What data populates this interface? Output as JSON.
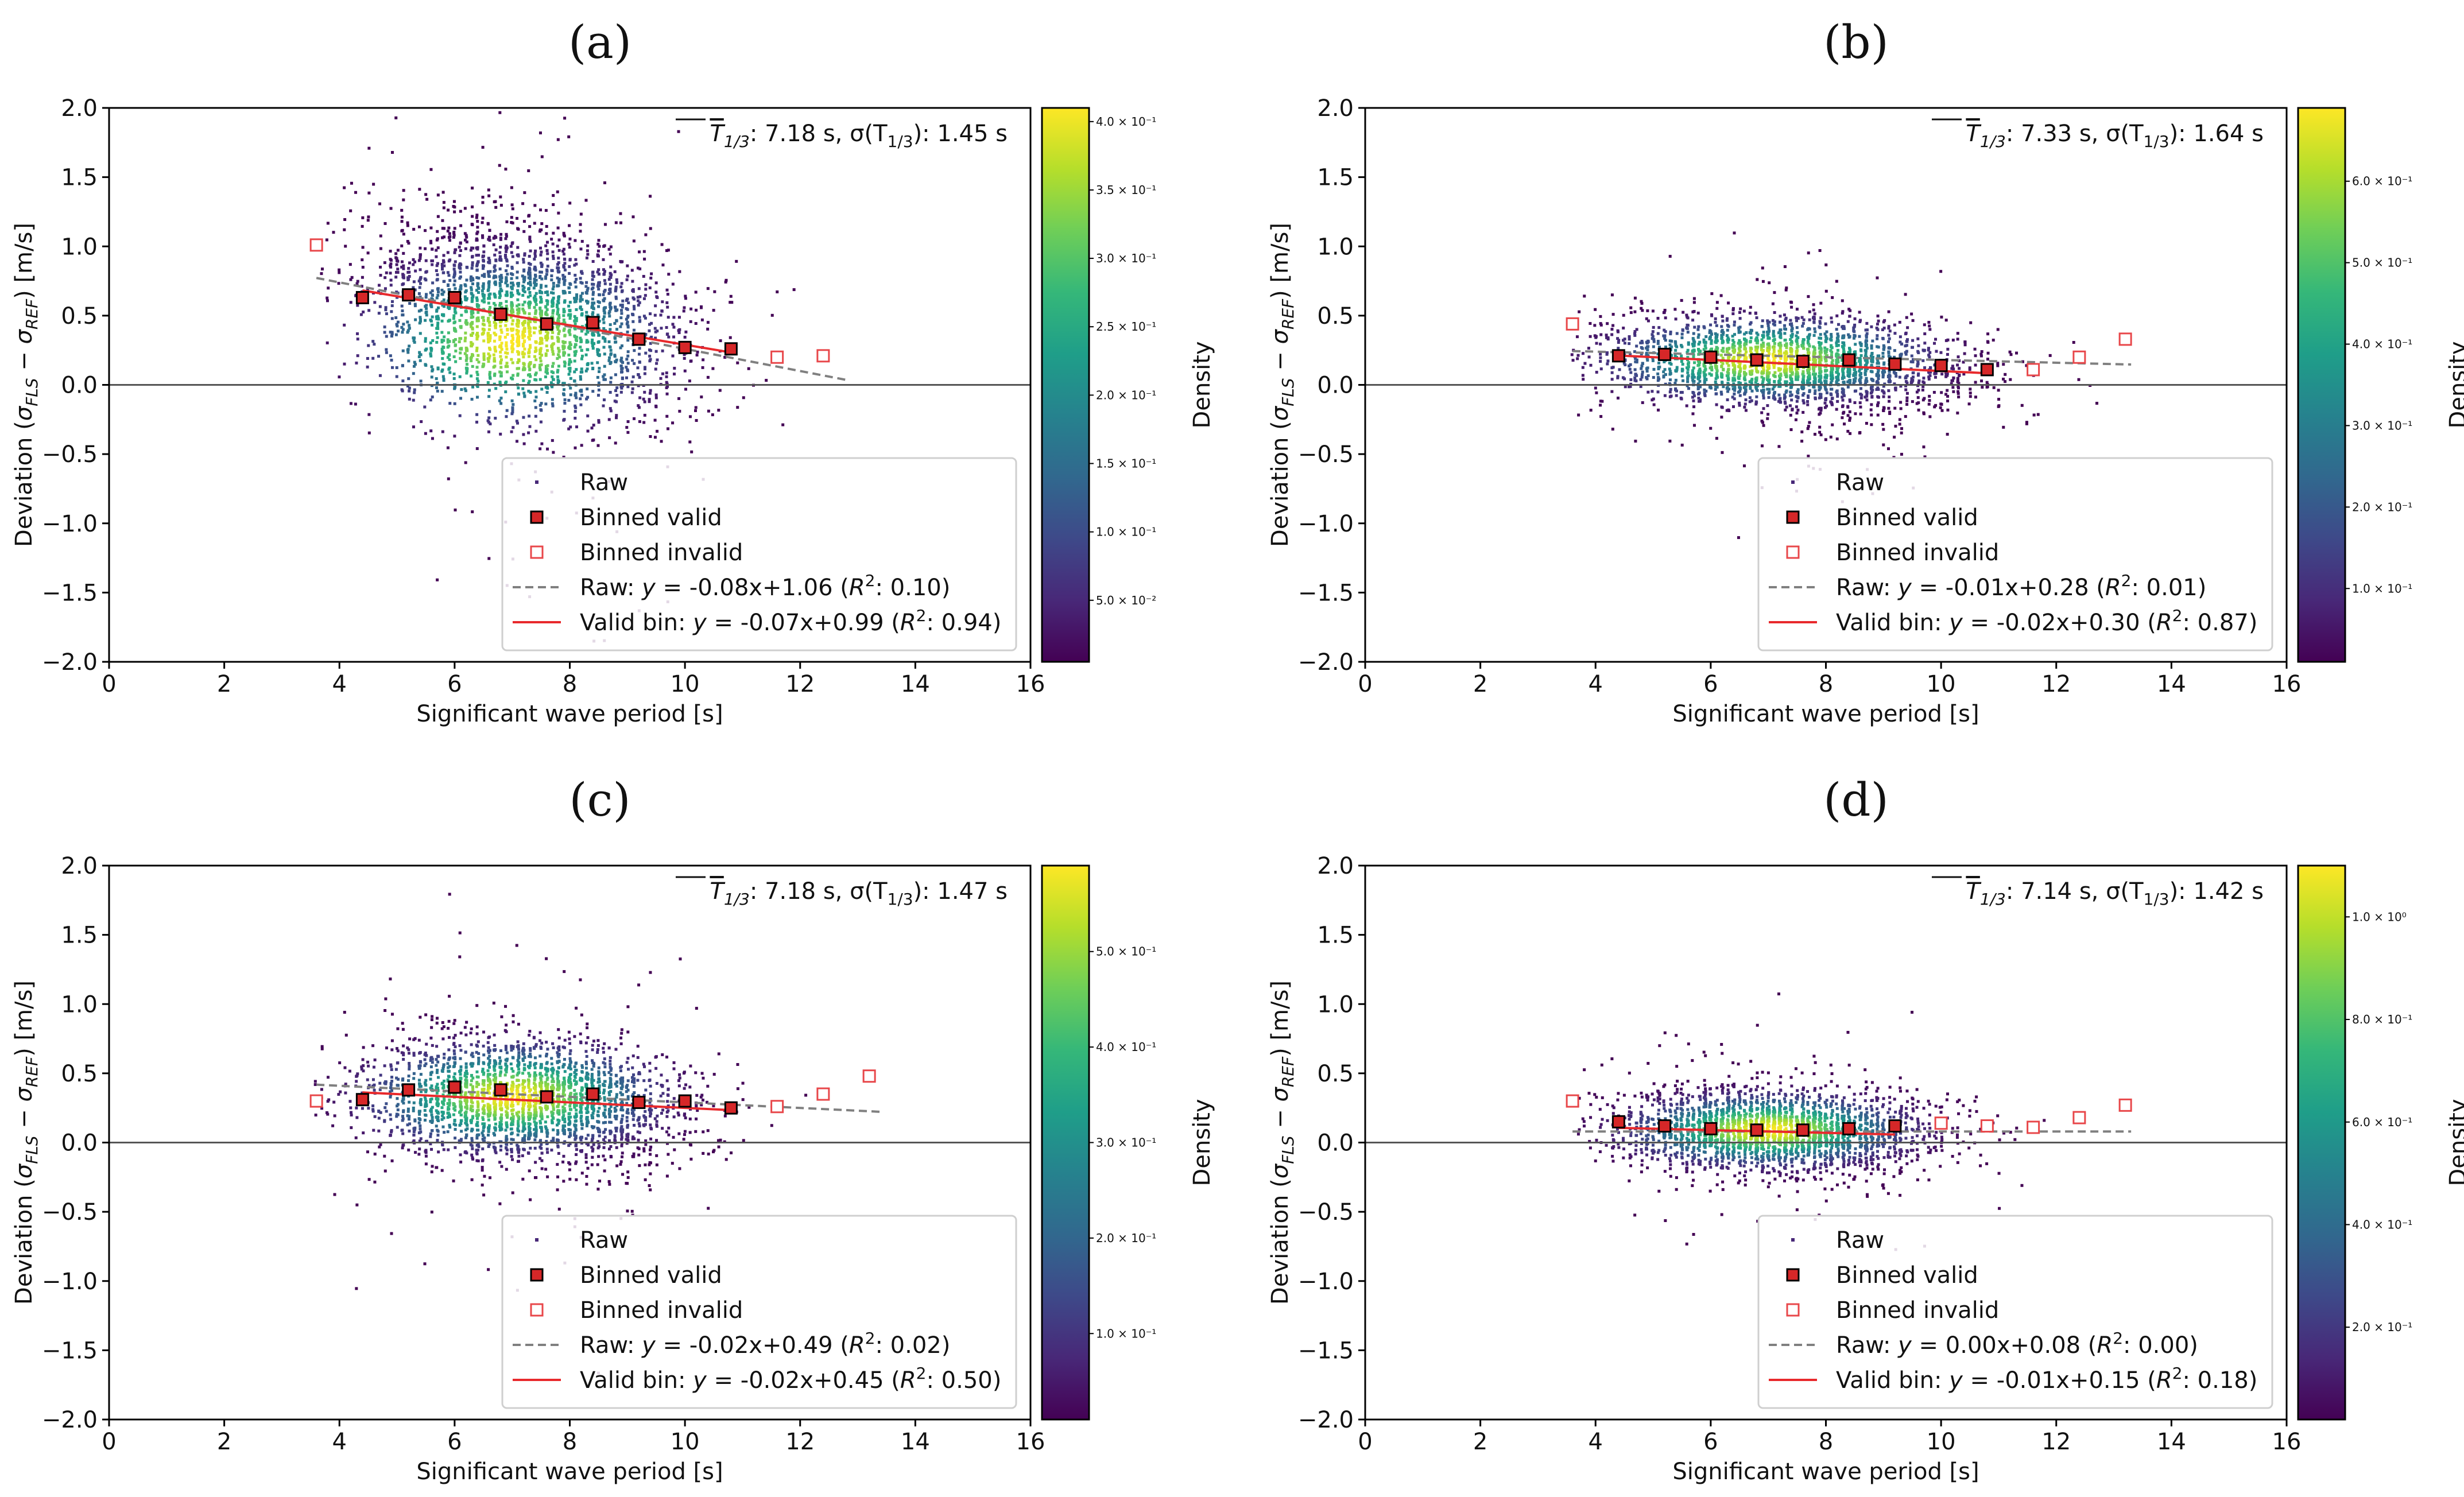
{
  "chart_data": [
    {
      "type": "scatter",
      "panel_label": "(a)",
      "xlabel": "Significant wave period [s]",
      "ylabel": "Deviation (σFLS − σREF) [m/s]",
      "ylabel_prefix": "Deviation (",
      "ylabel_sigma1": "σ",
      "ylabel_sub1": "FLS",
      "ylabel_minus": " − ",
      "ylabel_sigma2": "σ",
      "ylabel_sub2": "REF",
      "ylabel_suffix": ") [m/s]",
      "xlim": [
        0,
        16
      ],
      "ylim": [
        -2.0,
        2.0
      ],
      "xticks": [
        0,
        2,
        4,
        6,
        8,
        10,
        12,
        14,
        16
      ],
      "yticks": [
        -2.0,
        -1.5,
        -1.0,
        -0.5,
        0.0,
        0.5,
        1.0,
        1.5,
        2.0
      ],
      "xtick_labels": [
        "0",
        "2",
        "4",
        "6",
        "8",
        "10",
        "12",
        "14",
        "16"
      ],
      "ytick_labels": [
        "−2.0",
        "−1.5",
        "−1.0",
        "−0.5",
        "0.0",
        "0.5",
        "1.0",
        "1.5",
        "2.0"
      ],
      "stats_text": "T1/3: 7.18 s, σ(T1/3): 1.45 s",
      "stats_mean_sym": "T",
      "stats_sub": "1/3",
      "stats_mean_value": ": 7.18 s, ",
      "stats_std_prefix": "σ(T",
      "stats_std_sub": "1/3",
      "stats_std_value": "): 1.45 s",
      "colorbar": {
        "label": "Density",
        "tick_labels": [
          "5.0 × 10⁻²",
          "1.0 × 10⁻¹",
          "1.5 × 10⁻¹",
          "2.0 × 10⁻¹",
          "2.5 × 10⁻¹",
          "3.0 × 10⁻¹",
          "3.5 × 10⁻¹",
          "4.0 × 10⁻¹"
        ],
        "tick_values": [
          0.05,
          0.1,
          0.15,
          0.2,
          0.25,
          0.3,
          0.35,
          0.4
        ],
        "range": [
          0.005,
          0.41
        ]
      },
      "density_peak": {
        "x": 7.0,
        "y": 0.32
      },
      "raw_cloud": {
        "x_range": [
          3.6,
          12.8
        ],
        "center_x": 7.2,
        "sd_x": 1.45,
        "spread_y": 0.34
      },
      "binned_valid": [
        {
          "x": 4.4,
          "y": 0.63
        },
        {
          "x": 5.2,
          "y": 0.65
        },
        {
          "x": 6.0,
          "y": 0.63
        },
        {
          "x": 6.8,
          "y": 0.51
        },
        {
          "x": 7.6,
          "y": 0.44
        },
        {
          "x": 8.4,
          "y": 0.45
        },
        {
          "x": 9.2,
          "y": 0.33
        },
        {
          "x": 10.0,
          "y": 0.27
        },
        {
          "x": 10.8,
          "y": 0.26
        }
      ],
      "binned_invalid": [
        {
          "x": 3.6,
          "y": 1.01
        },
        {
          "x": 11.6,
          "y": 0.2
        },
        {
          "x": 12.4,
          "y": 0.21
        }
      ],
      "raw_fit": {
        "slope": -0.08,
        "intercept": 1.06,
        "r2": 0.1,
        "x_range": [
          3.6,
          12.8
        ]
      },
      "valid_fit": {
        "slope": -0.07,
        "intercept": 0.99,
        "r2": 0.94,
        "x_range": [
          4.4,
          10.8
        ]
      },
      "legend": [
        {
          "kind": "raw",
          "label": "Raw"
        },
        {
          "kind": "valid",
          "label": "Binned valid"
        },
        {
          "kind": "invalid",
          "label": "Binned invalid"
        },
        {
          "kind": "rawfit",
          "label": "Raw: y = -0.08x+1.06 (R²: 0.10)",
          "prefix": "Raw: ",
          "y": "y",
          "eq": " = -0.08x+1.06 (",
          "r": "R",
          "sup": "2",
          "tail": ": 0.10)"
        },
        {
          "kind": "validfit",
          "label": "Valid bin: y = -0.07x+0.99 (R²: 0.94)",
          "prefix": "Valid bin: ",
          "y": "y",
          "eq": " = -0.07x+0.99 (",
          "r": "R",
          "sup": "2",
          "tail": ": 0.94)"
        }
      ]
    },
    {
      "type": "scatter",
      "panel_label": "(b)",
      "xlabel": "Significant wave period [s]",
      "ylabel": "Deviation (σFLS − σREF) [m/s]",
      "ylabel_prefix": "Deviation (",
      "ylabel_sigma1": "σ",
      "ylabel_sub1": "FLS",
      "ylabel_minus": " − ",
      "ylabel_sigma2": "σ",
      "ylabel_sub2": "REF",
      "ylabel_suffix": ") [m/s]",
      "xlim": [
        0,
        16
      ],
      "ylim": [
        -2.0,
        2.0
      ],
      "xticks": [
        0,
        2,
        4,
        6,
        8,
        10,
        12,
        14,
        16
      ],
      "yticks": [
        -2.0,
        -1.5,
        -1.0,
        -0.5,
        0.0,
        0.5,
        1.0,
        1.5,
        2.0
      ],
      "xtick_labels": [
        "0",
        "2",
        "4",
        "6",
        "8",
        "10",
        "12",
        "14",
        "16"
      ],
      "ytick_labels": [
        "−2.0",
        "−1.5",
        "−1.0",
        "−0.5",
        "0.0",
        "0.5",
        "1.0",
        "1.5",
        "2.0"
      ],
      "stats_text": "T1/3: 7.33 s, σ(T1/3): 1.64 s",
      "stats_mean_sym": "T",
      "stats_sub": "1/3",
      "stats_mean_value": ": 7.33 s, ",
      "stats_std_prefix": "σ(T",
      "stats_std_sub": "1/3",
      "stats_std_value": "): 1.64 s",
      "colorbar": {
        "label": "Density",
        "tick_labels": [
          "1.0 × 10⁻¹",
          "2.0 × 10⁻¹",
          "3.0 × 10⁻¹",
          "4.0 × 10⁻¹",
          "5.0 × 10⁻¹",
          "6.0 × 10⁻¹"
        ],
        "tick_values": [
          0.1,
          0.2,
          0.3,
          0.4,
          0.5,
          0.6
        ],
        "range": [
          0.01,
          0.69
        ]
      },
      "density_peak": {
        "x": 7.0,
        "y": 0.18
      },
      "raw_cloud": {
        "x_range": [
          3.6,
          13.3
        ],
        "center_x": 7.3,
        "sd_x": 1.6,
        "spread_y": 0.17
      },
      "binned_valid": [
        {
          "x": 4.4,
          "y": 0.21
        },
        {
          "x": 5.2,
          "y": 0.22
        },
        {
          "x": 6.0,
          "y": 0.2
        },
        {
          "x": 6.8,
          "y": 0.18
        },
        {
          "x": 7.6,
          "y": 0.17
        },
        {
          "x": 8.4,
          "y": 0.18
        },
        {
          "x": 9.2,
          "y": 0.15
        },
        {
          "x": 10.0,
          "y": 0.14
        },
        {
          "x": 10.8,
          "y": 0.11
        }
      ],
      "binned_invalid": [
        {
          "x": 3.6,
          "y": 0.44
        },
        {
          "x": 11.6,
          "y": 0.11
        },
        {
          "x": 12.4,
          "y": 0.2
        },
        {
          "x": 13.2,
          "y": 0.33
        }
      ],
      "raw_fit": {
        "slope": -0.01,
        "intercept": 0.28,
        "r2": 0.01,
        "x_range": [
          3.6,
          13.3
        ]
      },
      "valid_fit": {
        "slope": -0.02,
        "intercept": 0.3,
        "r2": 0.87,
        "x_range": [
          4.4,
          10.8
        ]
      },
      "legend": [
        {
          "kind": "raw",
          "label": "Raw"
        },
        {
          "kind": "valid",
          "label": "Binned valid"
        },
        {
          "kind": "invalid",
          "label": "Binned invalid"
        },
        {
          "kind": "rawfit",
          "label": "Raw: y = -0.01x+0.28 (R²: 0.01)",
          "prefix": "Raw: ",
          "y": "y",
          "eq": " = -0.01x+0.28 (",
          "r": "R",
          "sup": "2",
          "tail": ": 0.01)"
        },
        {
          "kind": "validfit",
          "label": "Valid bin: y = -0.02x+0.30 (R²: 0.87)",
          "prefix": "Valid bin: ",
          "y": "y",
          "eq": " = -0.02x+0.30 (",
          "r": "R",
          "sup": "2",
          "tail": ": 0.87)"
        }
      ]
    },
    {
      "type": "scatter",
      "panel_label": "(c)",
      "xlabel": "Significant wave period [s]",
      "ylabel": "Deviation (σFLS − σREF) [m/s]",
      "ylabel_prefix": "Deviation (",
      "ylabel_sigma1": "σ",
      "ylabel_sub1": "FLS",
      "ylabel_minus": " − ",
      "ylabel_sigma2": "σ",
      "ylabel_sub2": "REF",
      "ylabel_suffix": ") [m/s]",
      "xlim": [
        0,
        16
      ],
      "ylim": [
        -2.0,
        2.0
      ],
      "xticks": [
        0,
        2,
        4,
        6,
        8,
        10,
        12,
        14,
        16
      ],
      "yticks": [
        -2.0,
        -1.5,
        -1.0,
        -0.5,
        0.0,
        0.5,
        1.0,
        1.5,
        2.0
      ],
      "xtick_labels": [
        "0",
        "2",
        "4",
        "6",
        "8",
        "10",
        "12",
        "14",
        "16"
      ],
      "ytick_labels": [
        "−2.0",
        "−1.5",
        "−1.0",
        "−0.5",
        "0.0",
        "0.5",
        "1.0",
        "1.5",
        "2.0"
      ],
      "stats_text": "T1/3: 7.18 s, σ(T1/3): 1.47 s",
      "stats_mean_sym": "T",
      "stats_sub": "1/3",
      "stats_mean_value": ": 7.18 s, ",
      "stats_std_prefix": "σ(T",
      "stats_std_sub": "1/3",
      "stats_std_value": "): 1.47 s",
      "colorbar": {
        "label": "Density",
        "tick_labels": [
          "1.0 × 10⁻¹",
          "2.0 × 10⁻¹",
          "3.0 × 10⁻¹",
          "4.0 × 10⁻¹",
          "5.0 × 10⁻¹"
        ],
        "tick_values": [
          0.1,
          0.2,
          0.3,
          0.4,
          0.5
        ],
        "range": [
          0.01,
          0.59
        ]
      },
      "density_peak": {
        "x": 7.0,
        "y": 0.33
      },
      "raw_cloud": {
        "x_range": [
          3.6,
          13.4
        ],
        "center_x": 7.2,
        "sd_x": 1.47,
        "spread_y": 0.22
      },
      "binned_valid": [
        {
          "x": 4.4,
          "y": 0.31
        },
        {
          "x": 5.2,
          "y": 0.38
        },
        {
          "x": 6.0,
          "y": 0.4
        },
        {
          "x": 6.8,
          "y": 0.38
        },
        {
          "x": 7.6,
          "y": 0.33
        },
        {
          "x": 8.4,
          "y": 0.35
        },
        {
          "x": 9.2,
          "y": 0.29
        },
        {
          "x": 10.0,
          "y": 0.3
        },
        {
          "x": 10.8,
          "y": 0.25
        }
      ],
      "binned_invalid": [
        {
          "x": 3.6,
          "y": 0.3
        },
        {
          "x": 11.6,
          "y": 0.26
        },
        {
          "x": 12.4,
          "y": 0.35
        },
        {
          "x": 13.2,
          "y": 0.48
        }
      ],
      "raw_fit": {
        "slope": -0.02,
        "intercept": 0.49,
        "r2": 0.02,
        "x_range": [
          3.6,
          13.4
        ]
      },
      "valid_fit": {
        "slope": -0.02,
        "intercept": 0.45,
        "r2": 0.5,
        "x_range": [
          4.4,
          10.8
        ]
      },
      "legend": [
        {
          "kind": "raw",
          "label": "Raw"
        },
        {
          "kind": "valid",
          "label": "Binned valid"
        },
        {
          "kind": "invalid",
          "label": "Binned invalid"
        },
        {
          "kind": "rawfit",
          "label": "Raw: y = -0.02x+0.49 (R²: 0.02)",
          "prefix": "Raw: ",
          "y": "y",
          "eq": " = -0.02x+0.49 (",
          "r": "R",
          "sup": "2",
          "tail": ": 0.02)"
        },
        {
          "kind": "validfit",
          "label": "Valid bin: y = -0.02x+0.45 (R²: 0.50)",
          "prefix": "Valid bin: ",
          "y": "y",
          "eq": " = -0.02x+0.45 (",
          "r": "R",
          "sup": "2",
          "tail": ": 0.50)"
        }
      ]
    },
    {
      "type": "scatter",
      "panel_label": "(d)",
      "xlabel": "Significant wave period [s]",
      "ylabel": "Deviation (σFLS − σREF) [m/s]",
      "ylabel_prefix": "Deviation (",
      "ylabel_sigma1": "σ",
      "ylabel_sub1": "FLS",
      "ylabel_minus": " − ",
      "ylabel_sigma2": "σ",
      "ylabel_sub2": "REF",
      "ylabel_suffix": ") [m/s]",
      "xlim": [
        0,
        16
      ],
      "ylim": [
        -2.0,
        2.0
      ],
      "xticks": [
        0,
        2,
        4,
        6,
        8,
        10,
        12,
        14,
        16
      ],
      "yticks": [
        -2.0,
        -1.5,
        -1.0,
        -0.5,
        0.0,
        0.5,
        1.0,
        1.5,
        2.0
      ],
      "xtick_labels": [
        "0",
        "2",
        "4",
        "6",
        "8",
        "10",
        "12",
        "14",
        "16"
      ],
      "ytick_labels": [
        "−2.0",
        "−1.5",
        "−1.0",
        "−0.5",
        "0.0",
        "0.5",
        "1.0",
        "1.5",
        "2.0"
      ],
      "stats_text": "T1/3: 7.14 s, σ(T1/3): 1.42 s",
      "stats_mean_sym": "T",
      "stats_sub": "1/3",
      "stats_mean_value": ": 7.14 s, ",
      "stats_std_prefix": "σ(T",
      "stats_std_sub": "1/3",
      "stats_std_value": "): 1.42 s",
      "colorbar": {
        "label": "Density",
        "tick_labels": [
          "2.0 × 10⁻¹",
          "4.0 × 10⁻¹",
          "6.0 × 10⁻¹",
          "8.0 × 10⁻¹",
          "1.0 × 10⁰"
        ],
        "tick_values": [
          0.2,
          0.4,
          0.6,
          0.8,
          1.0
        ],
        "range": [
          0.02,
          1.1
        ]
      },
      "density_peak": {
        "x": 7.0,
        "y": 0.09
      },
      "raw_cloud": {
        "x_range": [
          3.6,
          13.3
        ],
        "center_x": 7.1,
        "sd_x": 1.42,
        "spread_y": 0.15
      },
      "binned_valid": [
        {
          "x": 4.4,
          "y": 0.15
        },
        {
          "x": 5.2,
          "y": 0.12
        },
        {
          "x": 6.0,
          "y": 0.1
        },
        {
          "x": 6.8,
          "y": 0.09
        },
        {
          "x": 7.6,
          "y": 0.09
        },
        {
          "x": 8.4,
          "y": 0.1
        },
        {
          "x": 9.2,
          "y": 0.12
        }
      ],
      "binned_invalid": [
        {
          "x": 3.6,
          "y": 0.3
        },
        {
          "x": 10.0,
          "y": 0.14
        },
        {
          "x": 10.8,
          "y": 0.12
        },
        {
          "x": 11.6,
          "y": 0.11
        },
        {
          "x": 12.4,
          "y": 0.18
        },
        {
          "x": 13.2,
          "y": 0.27
        }
      ],
      "raw_fit": {
        "slope": 0.0,
        "intercept": 0.08,
        "r2": 0.0,
        "x_range": [
          3.6,
          13.3
        ]
      },
      "valid_fit": {
        "slope": -0.01,
        "intercept": 0.15,
        "r2": 0.18,
        "x_range": [
          4.4,
          9.2
        ]
      },
      "legend": [
        {
          "kind": "raw",
          "label": "Raw"
        },
        {
          "kind": "valid",
          "label": "Binned valid"
        },
        {
          "kind": "invalid",
          "label": "Binned invalid"
        },
        {
          "kind": "rawfit",
          "label": "Raw: y = 0.00x+0.08 (R²: 0.00)",
          "prefix": "Raw: ",
          "y": "y",
          "eq": " = 0.00x+0.08 (",
          "r": "R",
          "sup": "2",
          "tail": ": 0.00)"
        },
        {
          "kind": "validfit",
          "label": "Valid bin: y = -0.01x+0.15 (R²: 0.18)",
          "prefix": "Valid bin: ",
          "y": "y",
          "eq": " = -0.01x+0.15 (",
          "r": "R",
          "sup": "2",
          "tail": ": 0.18)"
        }
      ]
    }
  ],
  "colors": {
    "valid_fill": "#d62728",
    "invalid_edge": "#e8474a",
    "valid_fit_line": "#e8292c",
    "raw_fit_line": "#808080",
    "zero_line": "#555555",
    "viridis": [
      "#440154",
      "#482878",
      "#3e4989",
      "#31688e",
      "#26828e",
      "#1f9e89",
      "#35b779",
      "#6ece58",
      "#b5de2b",
      "#fde725"
    ]
  }
}
